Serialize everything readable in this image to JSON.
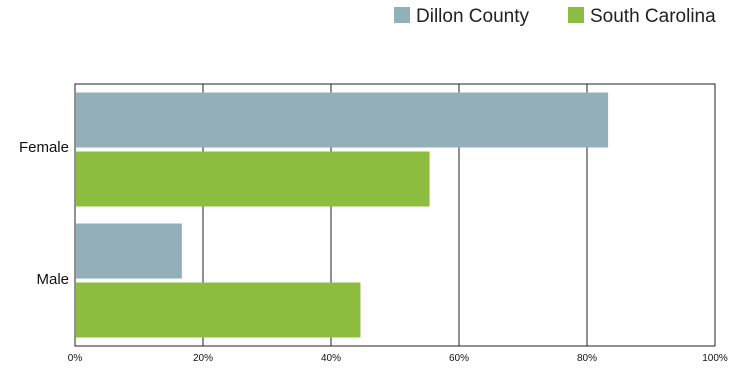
{
  "chart_data": {
    "type": "bar",
    "orientation": "horizontal",
    "categories": [
      "Female",
      "Male"
    ],
    "series": [
      {
        "name": "Dillon County",
        "color": "#92AFBA",
        "values": [
          83.3,
          16.7
        ]
      },
      {
        "name": "South Carolina",
        "color": "#8DBD3E",
        "values": [
          55.4,
          44.6
        ]
      }
    ],
    "x_ticks": [
      "0%",
      "20%",
      "40%",
      "60%",
      "80%",
      "100%"
    ],
    "xlim": [
      0,
      100
    ],
    "grid": true,
    "legend_position": "top-right"
  }
}
